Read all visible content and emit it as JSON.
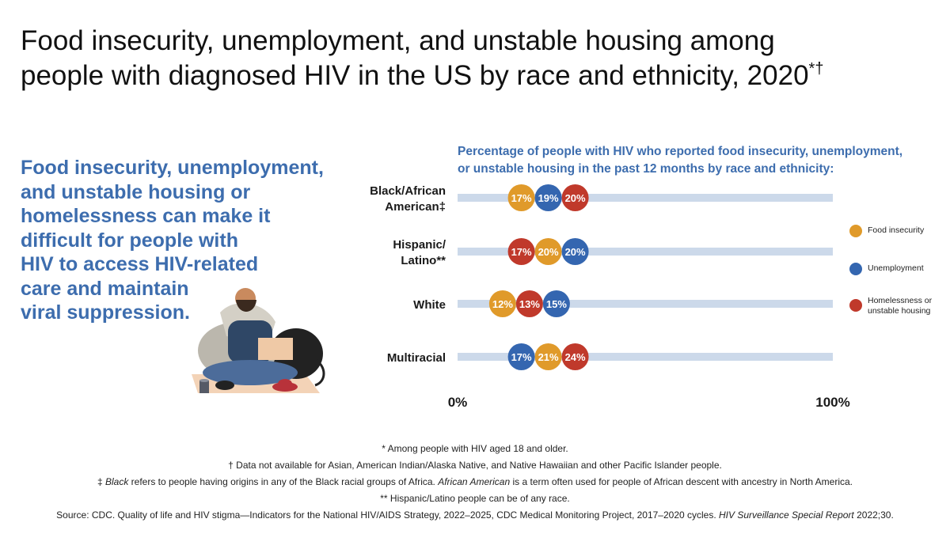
{
  "title": {
    "line1": "Food insecurity, unemployment, and unstable housing among",
    "line2": "people with diagnosed HIV in the US by race and ethnicity, 2020",
    "marks": "*†"
  },
  "lede": {
    "lines": [
      "Food insecurity, unemployment,",
      "and unstable housing or",
      "homelessness can make it",
      "difficult for people with",
      "HIV to access HIV-related",
      "care and maintain",
      "viral suppression."
    ]
  },
  "colors": {
    "food": "#e09a2a",
    "unemployment": "#3466b0",
    "housing": "#c0392b",
    "track": "#ccd9ea",
    "heading": "#3d6dae"
  },
  "chart_data": {
    "type": "scatter",
    "title_lines": [
      "Percentage of people with HIV who reported food insecurity, unemployment,",
      "or unstable housing in the past 12 months by race and ethnicity:"
    ],
    "xlim": [
      0,
      100
    ],
    "x_tick_labels": [
      "0%",
      "100%"
    ],
    "categories": [
      {
        "label_lines": [
          "Black/African",
          "American‡"
        ]
      },
      {
        "label_lines": [
          "Hispanic/",
          "Latino**"
        ]
      },
      {
        "label_lines": [
          "White"
        ]
      },
      {
        "label_lines": [
          "Multiracial"
        ]
      }
    ],
    "series": [
      {
        "name": "Food insecurity",
        "color_key": "food",
        "values": [
          17,
          20,
          12,
          21
        ]
      },
      {
        "name": "Unemployment",
        "color_key": "unemployment",
        "values": [
          19,
          20,
          15,
          17
        ]
      },
      {
        "name": "Homelessness or unstable housing",
        "color_key": "housing",
        "values": [
          20,
          17,
          13,
          24
        ]
      }
    ],
    "legend_position": "right",
    "legend": [
      {
        "lines": [
          "Food insecurity"
        ],
        "color_key": "food"
      },
      {
        "lines": [
          "Unemployment"
        ],
        "color_key": "unemployment"
      },
      {
        "lines": [
          "Homelessness or",
          "unstable housing"
        ],
        "color_key": "housing"
      }
    ]
  },
  "footnotes": [
    {
      "parts": [
        {
          "text": "* Among people with HIV aged 18 and older."
        }
      ]
    },
    {
      "parts": [
        {
          "text": "† Data not available for Asian, American Indian/Alaska Native, and Native Hawaiian and other Pacific Islander people."
        }
      ]
    },
    {
      "parts": [
        {
          "text": "‡ "
        },
        {
          "text": "Black",
          "italic": true
        },
        {
          "text": " refers to people having origins in any of the Black racial groups of Africa. "
        },
        {
          "text": "African American",
          "italic": true
        },
        {
          "text": " is a term often used for people of African descent with ancestry in North America."
        }
      ]
    },
    {
      "parts": [
        {
          "text": "** Hispanic/Latino people can be of any race."
        }
      ]
    },
    {
      "parts": [
        {
          "text": "Source: CDC. Quality of life and HIV stigma—Indicators for the National HIV/AIDS Strategy, 2022–2025, CDC Medical Monitoring Project, 2017–2020 cycles. "
        },
        {
          "text": "HIV Surveillance Special Report",
          "italic": true
        },
        {
          "text": " 2022;30."
        }
      ]
    }
  ]
}
